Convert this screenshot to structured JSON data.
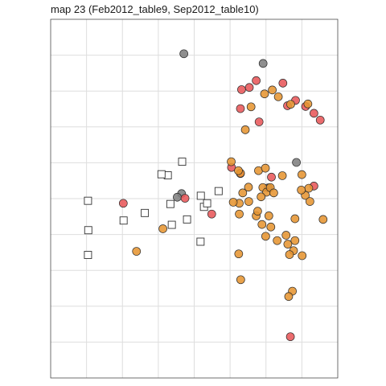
{
  "chart_data": {
    "type": "scatter",
    "title": "map 23 (Feb2012_table9, Sep2012_table10)",
    "xlabel": "",
    "ylabel": "",
    "xlim": [
      0,
      1
    ],
    "ylim": [
      0,
      1
    ],
    "grid": true,
    "axes_ticks_visible": false,
    "series": [
      {
        "marker": "open-square",
        "color": "#333333",
        "points": [
          [
            0.13,
            0.494
          ],
          [
            0.131,
            0.412
          ],
          [
            0.13,
            0.343
          ],
          [
            0.254,
            0.439
          ],
          [
            0.328,
            0.46
          ],
          [
            0.417,
            0.485
          ],
          [
            0.422,
            0.427
          ],
          [
            0.475,
            0.442
          ],
          [
            0.534,
            0.477
          ],
          [
            0.545,
            0.487
          ],
          [
            0.523,
            0.508
          ],
          [
            0.585,
            0.521
          ],
          [
            0.408,
            0.565
          ],
          [
            0.386,
            0.568
          ],
          [
            0.458,
            0.603
          ],
          [
            0.522,
            0.38
          ]
        ]
      },
      {
        "marker": "circle",
        "color": "#7f7f7f",
        "points": [
          [
            0.464,
            0.904
          ],
          [
            0.74,
            0.877
          ],
          [
            0.456,
            0.514
          ],
          [
            0.441,
            0.504
          ],
          [
            0.758,
            0.53
          ],
          [
            0.856,
            0.601
          ]
        ]
      },
      {
        "marker": "circle",
        "color": "#e8585a",
        "points": [
          [
            0.716,
            0.829
          ],
          [
            0.665,
            0.804
          ],
          [
            0.692,
            0.81
          ],
          [
            0.809,
            0.822
          ],
          [
            0.853,
            0.774
          ],
          [
            0.825,
            0.759
          ],
          [
            0.888,
            0.757
          ],
          [
            0.917,
            0.738
          ],
          [
            0.939,
            0.719
          ],
          [
            0.661,
            0.751
          ],
          [
            0.726,
            0.714
          ],
          [
            0.63,
            0.587
          ],
          [
            0.661,
            0.57
          ],
          [
            0.468,
            0.501
          ],
          [
            0.253,
            0.487
          ],
          [
            0.561,
            0.457
          ],
          [
            0.769,
            0.56
          ],
          [
            0.917,
            0.535
          ],
          [
            0.835,
            0.115
          ]
        ]
      },
      {
        "marker": "circle",
        "color": "#e69532",
        "points": [
          [
            0.772,
            0.803
          ],
          [
            0.745,
            0.792
          ],
          [
            0.793,
            0.784
          ],
          [
            0.698,
            0.756
          ],
          [
            0.836,
            0.763
          ],
          [
            0.896,
            0.764
          ],
          [
            0.678,
            0.692
          ],
          [
            0.629,
            0.603
          ],
          [
            0.661,
            0.571
          ],
          [
            0.669,
            0.516
          ],
          [
            0.689,
            0.532
          ],
          [
            0.724,
            0.578
          ],
          [
            0.748,
            0.585
          ],
          [
            0.739,
            0.531
          ],
          [
            0.752,
            0.518
          ],
          [
            0.765,
            0.531
          ],
          [
            0.777,
            0.516
          ],
          [
            0.807,
            0.564
          ],
          [
            0.875,
            0.567
          ],
          [
            0.899,
            0.529
          ],
          [
            0.887,
            0.509
          ],
          [
            0.903,
            0.492
          ],
          [
            0.873,
            0.524
          ],
          [
            0.851,
            0.444
          ],
          [
            0.76,
            0.452
          ],
          [
            0.736,
            0.428
          ],
          [
            0.716,
            0.452
          ],
          [
            0.721,
            0.465
          ],
          [
            0.657,
            0.457
          ],
          [
            0.657,
            0.487
          ],
          [
            0.636,
            0.49
          ],
          [
            0.69,
            0.492
          ],
          [
            0.733,
            0.505
          ],
          [
            0.767,
            0.421
          ],
          [
            0.749,
            0.395
          ],
          [
            0.789,
            0.383
          ],
          [
            0.82,
            0.398
          ],
          [
            0.851,
            0.383
          ],
          [
            0.826,
            0.373
          ],
          [
            0.846,
            0.355
          ],
          [
            0.832,
            0.344
          ],
          [
            0.876,
            0.341
          ],
          [
            0.949,
            0.442
          ],
          [
            0.655,
            0.346
          ],
          [
            0.662,
            0.274
          ],
          [
            0.391,
            0.416
          ],
          [
            0.299,
            0.353
          ],
          [
            0.842,
            0.242
          ],
          [
            0.829,
            0.227
          ],
          [
            0.654,
            0.578
          ]
        ]
      }
    ]
  }
}
